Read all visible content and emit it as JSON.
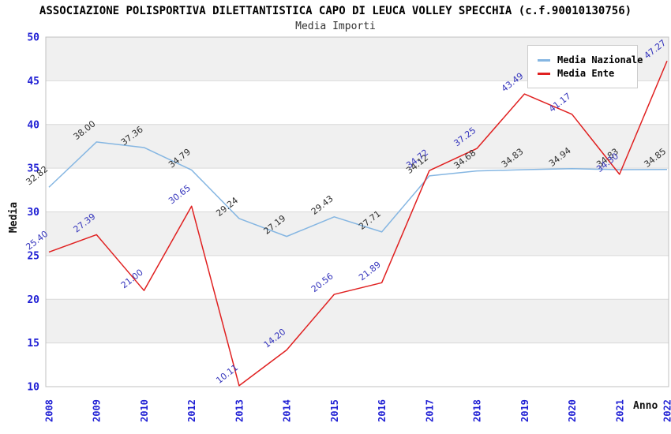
{
  "header": {
    "title": "ASSOCIAZIONE POLISPORTIVA DILETTANTISTICA CAPO DI LEUCA VOLLEY SPECCHIA (c.f.90010130756)",
    "subtitle": "Media Importi"
  },
  "axes": {
    "y_title": "Media",
    "x_title": "Anno"
  },
  "legend": {
    "items": [
      {
        "label": "Media Nazionale",
        "color": "#85b6e2"
      },
      {
        "label": "Media Ente",
        "color": "#e02020"
      }
    ]
  },
  "chart_data": {
    "type": "line",
    "title": "ASSOCIAZIONE POLISPORTIVA DILETTANTISTICA CAPO DI LEUCA VOLLEY SPECCHIA (c.f.90010130756)",
    "subtitle": "Media Importi",
    "xlabel": "Anno",
    "ylabel": "Media",
    "categories": [
      "2008",
      "2009",
      "2010",
      "2012",
      "2013",
      "2014",
      "2015",
      "2016",
      "2017",
      "2018",
      "2019",
      "2020",
      "2021",
      "2022"
    ],
    "series": [
      {
        "name": "Media Nazionale",
        "color": "#85b6e2",
        "label_color": "#2e2e2e",
        "values": [
          32.82,
          38.0,
          37.36,
          34.79,
          29.24,
          27.19,
          29.43,
          27.71,
          34.12,
          34.68,
          34.83,
          34.94,
          34.83,
          34.85
        ]
      },
      {
        "name": "Media Ente",
        "color": "#e02020",
        "label_color": "#3434bc",
        "values": [
          25.4,
          27.39,
          21.0,
          30.65,
          10.11,
          14.2,
          20.56,
          21.89,
          34.72,
          37.25,
          43.49,
          41.17,
          34.3,
          47.27
        ]
      }
    ],
    "ylim": [
      10,
      50
    ],
    "y_ticks": [
      10,
      15,
      20,
      25,
      30,
      35,
      40,
      45,
      50
    ],
    "tick_color": "#1f1fd4",
    "band_colors": [
      "#f0f0f0",
      "#ffffff"
    ],
    "grid_color": "#d9d9d9",
    "border_color": "#c0c0c0",
    "grid": true,
    "legend_position": "top-right",
    "label_format_decimals": 2
  }
}
